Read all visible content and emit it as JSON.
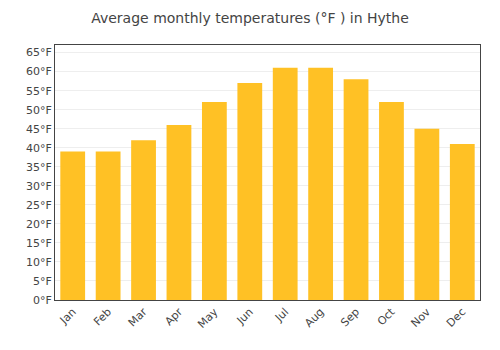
{
  "chart_data": {
    "type": "bar",
    "title": "Average monthly temperatures (°F ) in Hythe",
    "categories": [
      "Jan",
      "Feb",
      "Mar",
      "Apr",
      "May",
      "Jun",
      "Jul",
      "Aug",
      "Sep",
      "Oct",
      "Nov",
      "Dec"
    ],
    "values": [
      39,
      39,
      42,
      46,
      52,
      57,
      61,
      61,
      58,
      52,
      45,
      41
    ],
    "color": "#FFC125",
    "ylim": [
      0,
      67
    ],
    "yticks": [
      {
        "value": 0,
        "label": "0°F"
      },
      {
        "value": 5,
        "label": "5°F"
      },
      {
        "value": 10,
        "label": "10°F"
      },
      {
        "value": 15,
        "label": "15°F"
      },
      {
        "value": 20,
        "label": "20°F"
      },
      {
        "value": 25,
        "label": "25°F"
      },
      {
        "value": 30,
        "label": "30°F"
      },
      {
        "value": 35,
        "label": "35°F"
      },
      {
        "value": 40,
        "label": "40°F"
      },
      {
        "value": 45,
        "label": "45°F"
      },
      {
        "value": 50,
        "label": "50°F"
      },
      {
        "value": 55,
        "label": "55°F"
      },
      {
        "value": 60,
        "label": "60°F"
      },
      {
        "value": 65,
        "label": "65°F"
      }
    ],
    "grid": true
  }
}
